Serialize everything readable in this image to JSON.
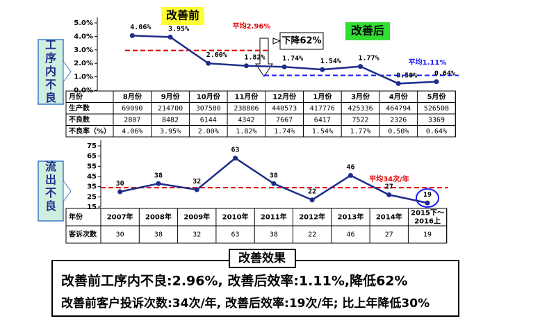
{
  "chart_data": [
    {
      "type": "line",
      "side_label": "工序内不良",
      "color": "#1f2d8a",
      "categories": [
        "8月份",
        "9月份",
        "10月份",
        "11月份",
        "12月份",
        "1月份",
        "3月份",
        "4月份",
        "5月份"
      ],
      "values": [
        4.06,
        3.95,
        2.0,
        1.82,
        1.74,
        1.54,
        1.77,
        0.5,
        0.64
      ],
      "value_labels": [
        "4.06%",
        "3.95%",
        "2.00%",
        "1.82%",
        "1.74%",
        "1.54%",
        "1.77%",
        "0.50%",
        "0.64%"
      ],
      "ylim": [
        0,
        5
      ],
      "yticks": [
        {
          "value": 0,
          "label": "0.0%"
        },
        {
          "value": 1,
          "label": "1.0%"
        },
        {
          "value": 2,
          "label": "2.0%"
        },
        {
          "value": 3,
          "label": "3.0%"
        },
        {
          "value": 4,
          "label": "4.0%"
        },
        {
          "value": 5,
          "label": "5.0%"
        }
      ],
      "reference_lines": [
        {
          "value": 2.96,
          "label": "平均2.96%",
          "color": "#e00000"
        },
        {
          "value": 1.11,
          "label": "平均1.11%",
          "color": "#1a1aff"
        }
      ],
      "annotations": [
        "改善前",
        "改善后",
        "下降62%"
      ],
      "table": {
        "header": "月份",
        "rows": [
          {
            "label": "生产数",
            "values": [
              69090,
              214700,
              307580,
              238806,
              440573,
              417776,
              425336,
              464794,
              526508
            ]
          },
          {
            "label": "不良数",
            "values": [
              2807,
              8482,
              6144,
              4342,
              7667,
              6417,
              7522,
              2326,
              3369
            ]
          }
        ],
        "rate_label": "不良率（%）"
      }
    },
    {
      "type": "line",
      "side_label": "流出不良",
      "color": "#1f2d8a",
      "categories": [
        "2007年",
        "2008年",
        "2009年",
        "2010年",
        "2011年",
        "2012年",
        "2013年",
        "2014年",
        "2015下～2016上"
      ],
      "values": [
        30,
        38,
        32,
        63,
        38,
        22,
        46,
        27,
        19
      ],
      "ylim": [
        15,
        75
      ],
      "yticks": [
        15,
        25,
        35,
        45,
        55,
        65,
        75
      ],
      "reference_lines": [
        {
          "value": 34,
          "label": "平均34次/年",
          "color": "#e00000"
        }
      ],
      "table": {
        "header": "年份",
        "row_label": "客诉次数"
      }
    }
  ],
  "summary": {
    "title": "改善效果",
    "lines": [
      "改善前工序内不良:2.96%, 改善后效率:1.11%,降低62%",
      "改善前客户投诉次数:34次/年, 改善后效率:19次/年; 比上年降低30%"
    ]
  }
}
